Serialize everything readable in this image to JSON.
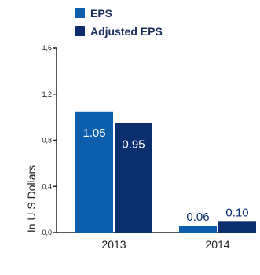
{
  "chart_data": {
    "type": "bar",
    "categories": [
      "2013",
      "2014"
    ],
    "series": [
      {
        "name": "EPS",
        "values": [
          1.05,
          0.06
        ],
        "labels": [
          "1.05",
          "0.06"
        ],
        "color": "#0d5fae"
      },
      {
        "name": "Adjusted EPS",
        "values": [
          0.95,
          0.1
        ],
        "labels": [
          "0.95",
          "0.10"
        ],
        "color": "#0b2f6e"
      }
    ],
    "title": "",
    "xlabel": "",
    "ylabel": "In U.S Dollars",
    "ylim": [
      0,
      1.6
    ],
    "yticks": [
      0,
      0.4,
      0.8,
      1.2,
      1.6
    ],
    "ytick_labels": [
      "0,0",
      "0,4",
      "0,8",
      "1,2",
      "1,6"
    ],
    "grid": false,
    "legend_position": "top"
  }
}
